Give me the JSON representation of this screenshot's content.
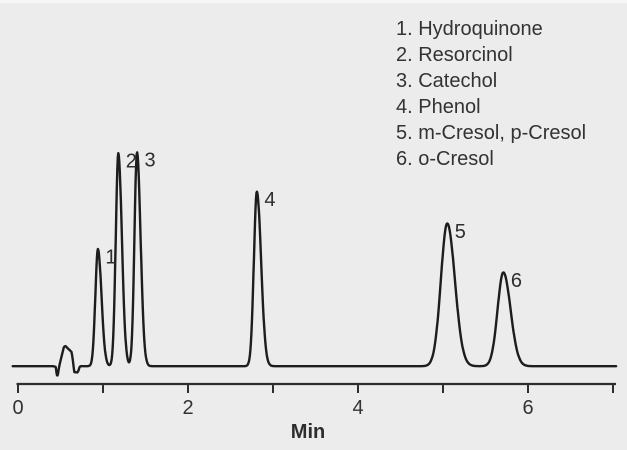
{
  "colors": {
    "background": "#ececec",
    "top_strip": "#f6f6f6",
    "trace": "#1d1d1d",
    "axis": "#2e2e2e",
    "text": "#333333"
  },
  "legend": {
    "items": [
      "1. Hydroquinone",
      "2. Resorcinol",
      "3. Catechol",
      "4. Phenol",
      "5. m-Cresol, p-Cresol",
      "6. o-Cresol"
    ]
  },
  "chart_data": {
    "type": "line",
    "title": "",
    "xlabel": "Min",
    "ylabel": "",
    "xlim": [
      0,
      7
    ],
    "x_ticks": [
      0,
      1,
      2,
      3,
      4,
      5,
      6,
      7
    ],
    "x_labeled_ticks": [
      0,
      2,
      4,
      6
    ],
    "y_axis_shown": false,
    "grid": false,
    "legend_position": "top-right",
    "peaks": [
      {
        "label": "1",
        "name": "Hydroquinone",
        "rt_min": 0.94,
        "height": 0.55,
        "sigma_left": 0.03,
        "sigma_right": 0.042
      },
      {
        "label": "2",
        "name": "Resorcinol",
        "rt_min": 1.18,
        "height": 1.0,
        "sigma_left": 0.03,
        "sigma_right": 0.042
      },
      {
        "label": "3",
        "name": "Catechol",
        "rt_min": 1.4,
        "height": 1.005,
        "sigma_left": 0.03,
        "sigma_right": 0.042
      },
      {
        "label": "4",
        "name": "Phenol",
        "rt_min": 2.81,
        "height": 0.82,
        "sigma_left": 0.035,
        "sigma_right": 0.05
      },
      {
        "label": "5",
        "name": "m-Cresol, p-Cresol",
        "rt_min": 5.05,
        "height": 0.67,
        "sigma_left": 0.075,
        "sigma_right": 0.09
      },
      {
        "label": "6",
        "name": "o-Cresol",
        "rt_min": 5.71,
        "height": 0.44,
        "sigma_left": 0.068,
        "sigma_right": 0.085
      }
    ],
    "baseline_disturbance": [
      [
        0.41,
        0.0
      ],
      [
        0.445,
        -0.003
      ],
      [
        0.452,
        -0.03
      ],
      [
        0.458,
        -0.043
      ],
      [
        0.468,
        -0.043
      ],
      [
        0.475,
        -0.025
      ],
      [
        0.49,
        0.01
      ],
      [
        0.54,
        0.09
      ],
      [
        0.558,
        0.095
      ],
      [
        0.575,
        0.088
      ],
      [
        0.63,
        0.067
      ],
      [
        0.645,
        0.03
      ],
      [
        0.655,
        -0.005
      ],
      [
        0.663,
        -0.028
      ],
      [
        0.7,
        -0.029
      ],
      [
        0.712,
        -0.02
      ],
      [
        0.725,
        -0.004
      ],
      [
        0.735,
        0.0
      ]
    ]
  }
}
